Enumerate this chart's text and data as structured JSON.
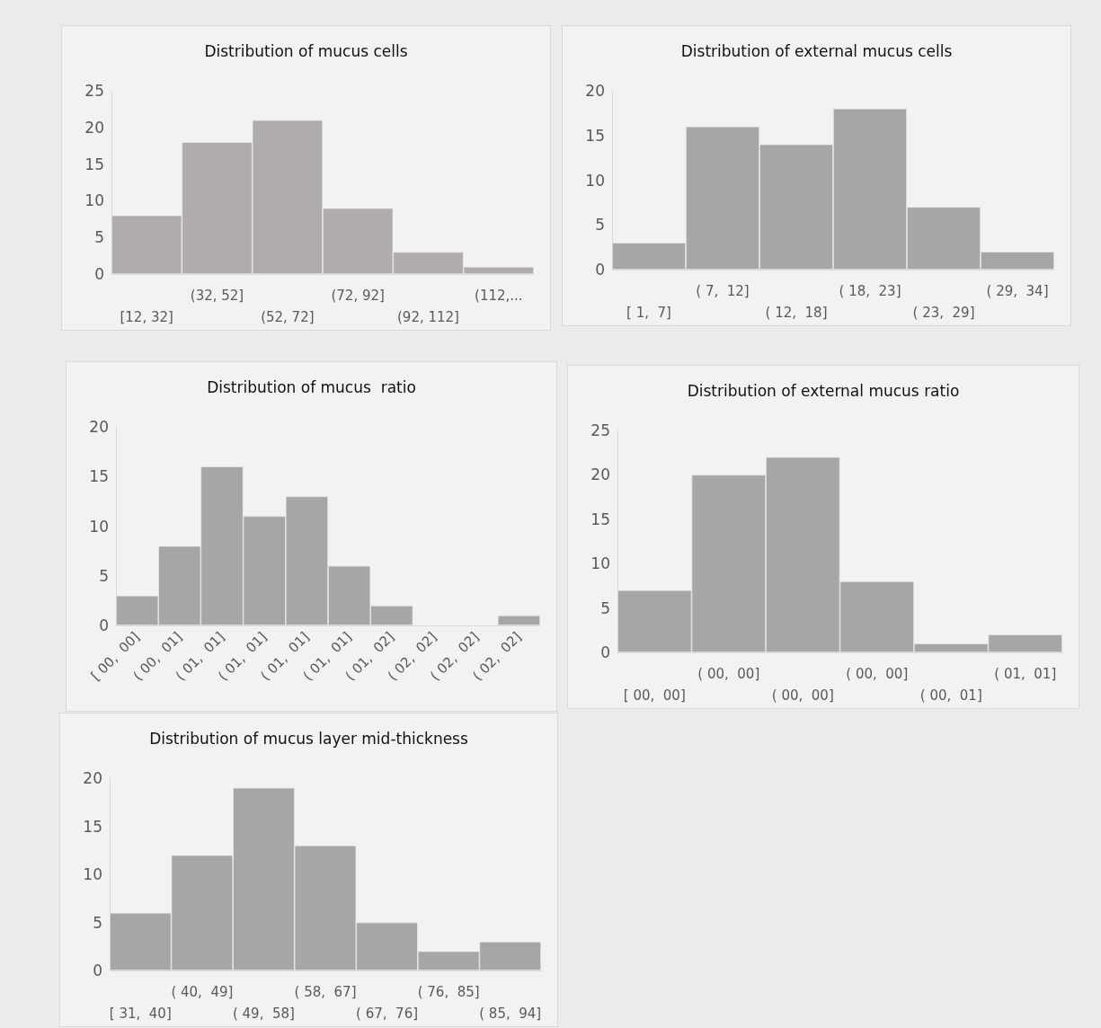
{
  "chart_data": [
    {
      "type": "bar",
      "title": "Distribution of mucus cells",
      "categories": [
        "[12, 32]",
        "(32, 52]",
        "(52, 72]",
        "(72, 92]",
        "(92, 112]",
        "(112,..."
      ],
      "values": [
        8,
        18,
        21,
        9,
        3,
        1
      ],
      "color": "#b0acab",
      "ylim": [
        0,
        25
      ],
      "yticks": [
        0,
        5,
        10,
        15,
        20,
        25
      ],
      "grid": false
    },
    {
      "type": "bar",
      "title": "Distribution of external mucus cells",
      "categories": [
        "[ 1,  7]",
        "( 7,  12]",
        "( 12,  18]",
        "( 18,  23]",
        "( 23,  29]",
        "( 29,  34]"
      ],
      "values": [
        3,
        16,
        14,
        18,
        7,
        2
      ],
      "color": "#a6a6a6",
      "ylim": [
        0,
        20
      ],
      "yticks": [
        0,
        5,
        10,
        15,
        20
      ],
      "grid": false
    },
    {
      "type": "bar",
      "title": "Distribution of mucus  ratio",
      "categories": [
        "[ 00,  00]",
        "( 00,  01]",
        "( 01,  01]",
        "( 01,  01]",
        "( 01,  01]",
        "( 01,  01]",
        "( 01,  02]",
        "( 02,  02]",
        "( 02,  02]",
        "( 02,  02]"
      ],
      "values": [
        3,
        8,
        16,
        11,
        13,
        6,
        2,
        0,
        0,
        1
      ],
      "color": "#a6a6a6",
      "ylim": [
        0,
        20
      ],
      "yticks": [
        0,
        5,
        10,
        15,
        20
      ],
      "grid": false
    },
    {
      "type": "bar",
      "title": "Distribution of external mucus ratio",
      "categories": [
        "[ 00,  00]",
        "( 00,  00]",
        "( 00,  00]",
        "( 00,  00]",
        "( 00,  01]",
        "( 01,  01]"
      ],
      "values": [
        7,
        20,
        22,
        8,
        1,
        2
      ],
      "color": "#a6a6a6",
      "ylim": [
        0,
        25
      ],
      "yticks": [
        0,
        5,
        10,
        15,
        20,
        25
      ],
      "grid": false
    },
    {
      "type": "bar",
      "title": "Distribution of mucus layer mid-thickness",
      "categories": [
        "[ 31,  40]",
        "( 40,  49]",
        "( 49,  58]",
        "( 58,  67]",
        "( 67,  76]",
        "( 76,  85]",
        "( 85,  94]"
      ],
      "values": [
        6,
        12,
        19,
        13,
        5,
        2,
        3
      ],
      "color": "#a6a6a6",
      "ylim": [
        0,
        20
      ],
      "yticks": [
        0,
        5,
        10,
        15,
        20
      ],
      "grid": false
    }
  ]
}
